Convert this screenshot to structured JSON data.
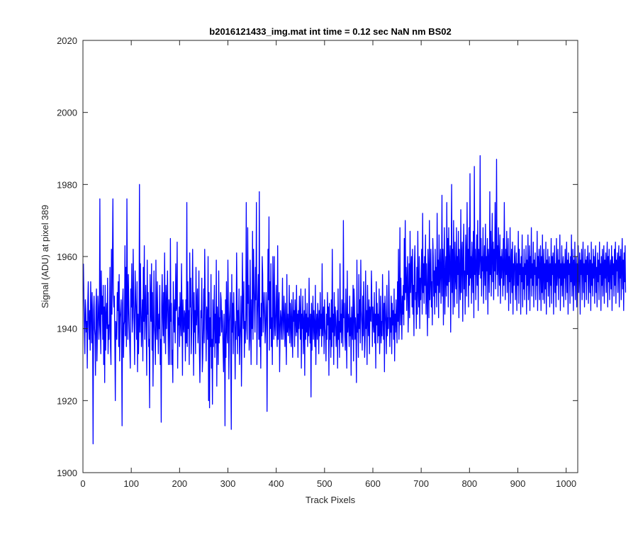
{
  "figure": {
    "title": "b2016121433_img.mat int time = 0.12 sec  NaN nm BS02",
    "xlabel": "Track Pixels",
    "ylabel": "Signal (ADU) at pixel 389"
  },
  "chart_data": {
    "type": "line",
    "title": "b2016121433_img.mat int time = 0.12 sec  NaN nm BS02",
    "xlabel": "Track Pixels",
    "ylabel": "Signal (ADU) at pixel 389",
    "xlim": [
      0,
      1024
    ],
    "ylim": [
      1900,
      2020
    ],
    "xticks": [
      0,
      100,
      200,
      300,
      400,
      500,
      600,
      700,
      800,
      900,
      1000
    ],
    "yticks": [
      1900,
      1920,
      1940,
      1960,
      1980,
      2000,
      2020
    ],
    "grid": false,
    "legend": "none",
    "series": [
      {
        "color": "#0000ff",
        "x_start": 1,
        "x_step": 1,
        "values": [
          1958,
          1948,
          1940,
          1933,
          1948,
          1945,
          1939,
          1942,
          1929,
          1947,
          1953,
          1941,
          1937,
          1945,
          1934,
          1953,
          1945,
          1936,
          1950,
          1939,
          1908,
          1945,
          1949,
          1940,
          1938,
          1927,
          1946,
          1951,
          1931,
          1939,
          1949,
          1946,
          1937,
          1941,
          1976,
          1941,
          1933,
          1956,
          1944,
          1949,
          1937,
          1952,
          1930,
          1946,
          1925,
          1952,
          1934,
          1943,
          1947,
          1940,
          1954,
          1933,
          1941,
          1937,
          1942,
          1957,
          1935,
          1930,
          1962,
          1944,
          1958,
          1976,
          1950,
          1946,
          1949,
          1936,
          1920,
          1942,
          1941,
          1937,
          1950,
          1945,
          1953,
          1935,
          1955,
          1931,
          1943,
          1945,
          1948,
          1937,
          1913,
          1947,
          1951,
          1932,
          1941,
          1942,
          1963,
          1938,
          1957,
          1935,
          1976,
          1949,
          1937,
          1955,
          1946,
          1940,
          1935,
          1929,
          1951,
          1946,
          1958,
          1939,
          1943,
          1962,
          1948,
          1941,
          1930,
          1956,
          1949,
          1944,
          1937,
          1953,
          1928,
          1944,
          1933,
          1941,
          1980,
          1939,
          1958,
          1946,
          1935,
          1942,
          1948,
          1931,
          1957,
          1942,
          1963,
          1937,
          1945,
          1952,
          1940,
          1927,
          1959,
          1944,
          1950,
          1935,
          1937,
          1918,
          1955,
          1946,
          1942,
          1958,
          1934,
          1950,
          1924,
          1939,
          1956,
          1941,
          1938,
          1930,
          1959,
          1943,
          1937,
          1953,
          1941,
          1933,
          1944,
          1940,
          1952,
          1930,
          1937,
          1914,
          1947,
          1955,
          1943,
          1938,
          1950,
          1936,
          1961,
          1945,
          1933,
          1952,
          1940,
          1946,
          1956,
          1942,
          1930,
          1948,
          1944,
          1930,
          1965,
          1942,
          1947,
          1930,
          1934,
          1925,
          1953,
          1944,
          1939,
          1948,
          1936,
          1958,
          1945,
          1946,
          1964,
          1929,
          1943,
          1941,
          1946,
          1935,
          1950,
          1942,
          1938,
          1958,
          1944,
          1927,
          1948,
          1941,
          1939,
          1945,
          1944,
          1931,
          1948,
          1936,
          1975,
          1935,
          1953,
          1940,
          1945,
          1930,
          1961,
          1946,
          1954,
          1933,
          1939,
          1948,
          1962,
          1944,
          1927,
          1950,
          1939,
          1945,
          1933,
          1957,
          1941,
          1946,
          1951,
          1936,
          1940,
          1956,
          1934,
          1925,
          1935,
          1945,
          1943,
          1954,
          1928,
          1932,
          1942,
          1951,
          1936,
          1962,
          1949,
          1942,
          1931,
          1946,
          1944,
          1937,
          1960,
          1920,
          1950,
          1918,
          1943,
          1935,
          1955,
          1929,
          1937,
          1919,
          1948,
          1935,
          1942,
          1952,
          1932,
          1944,
          1936,
          1959,
          1924,
          1946,
          1941,
          1930,
          1956,
          1936,
          1943,
          1938,
          1950,
          1948,
          1939,
          1945,
          1942,
          1934,
          1928,
          1944,
          1937,
          1913,
          1948,
          1932,
          1953,
          1940,
          1936,
          1959,
          1946,
          1926,
          1942,
          1945,
          1950,
          1930,
          1912,
          1955,
          1939,
          1947,
          1933,
          1950,
          1943,
          1940,
          1926,
          1942,
          1937,
          1961,
          1948,
          1933,
          1945,
          1938,
          1951,
          1930,
          1937,
          1942,
          1949,
          1924,
          1938,
          1961,
          1946,
          1940,
          1953,
          1932,
          1942,
          1936,
          1945,
          1975,
          1940,
          1937,
          1968,
          1947,
          1952,
          1934,
          1937,
          1959,
          1943,
          1930,
          1948,
          1940,
          1967,
          1937,
          1962,
          1953,
          1946,
          1939,
          1957,
          1948,
          1975,
          1930,
          1943,
          1949,
          1955,
          1937,
          1978,
          1935,
          1943,
          1929,
          1947,
          1938,
          1960,
          1955,
          1939,
          1945,
          1950,
          1944,
          1936,
          1941,
          1950,
          1946,
          1917,
          1942,
          1962,
          1948,
          1971,
          1934,
          1953,
          1940,
          1958,
          1935,
          1943,
          1930,
          1960,
          1948,
          1937,
          1960,
          1941,
          1938,
          1945,
          1952,
          1940,
          1935,
          1963,
          1937,
          1945,
          1950,
          1928,
          1939,
          1945,
          1943,
          1937,
          1944,
          1954,
          1937,
          1940,
          1949,
          1943,
          1935,
          1947,
          1939,
          1930,
          1955,
          1939,
          1944,
          1938,
          1941,
          1952,
          1936,
          1947,
          1942,
          1935,
          1948,
          1941,
          1932,
          1950,
          1942,
          1945,
          1935,
          1948,
          1943,
          1938,
          1952,
          1939,
          1944,
          1932,
          1945,
          1940,
          1949,
          1943,
          1937,
          1951,
          1929,
          1944,
          1940,
          1949,
          1933,
          1942,
          1945,
          1927,
          1951,
          1937,
          1944,
          1939,
          1947,
          1935,
          1943,
          1938,
          1954,
          1941,
          1936,
          1944,
          1921,
          1947,
          1934,
          1942,
          1949,
          1937,
          1945,
          1940,
          1935,
          1952,
          1930,
          1941,
          1944,
          1937,
          1947,
          1942,
          1933,
          1945,
          1938,
          1950,
          1940,
          1944,
          1935,
          1958,
          1938,
          1942,
          1946,
          1933,
          1948,
          1940,
          1938,
          1931,
          1944,
          1937,
          1950,
          1941,
          1946,
          1927,
          1947,
          1937,
          1943,
          1932,
          1948,
          1935,
          1962,
          1939,
          1944,
          1930,
          1950,
          1938,
          1946,
          1943,
          1935,
          1939,
          1945,
          1929,
          1951,
          1937,
          1942,
          1932,
          1958,
          1939,
          1944,
          1936,
          1948,
          1941,
          1935,
          1970,
          1943,
          1947,
          1938,
          1934,
          1951,
          1940,
          1929,
          1956,
          1939,
          1944,
          1942,
          1935,
          1949,
          1938,
          1943,
          1927,
          1946,
          1940,
          1937,
          1952,
          1931,
          1951,
          1946,
          1937,
          1943,
          1938,
          1925,
          1959,
          1939,
          1944,
          1932,
          1955,
          1940,
          1948,
          1936,
          1959,
          1945,
          1941,
          1934,
          1949,
          1938,
          1953,
          1943,
          1932,
          1937,
          1956,
          1940,
          1945,
          1930,
          1952,
          1943,
          1938,
          1948,
          1933,
          1946,
          1943,
          1942,
          1956,
          1948,
          1935,
          1946,
          1942,
          1939,
          1950,
          1936,
          1944,
          1929,
          1953,
          1941,
          1947,
          1936,
          1944,
          1938,
          1951,
          1933,
          1940,
          1949,
          1936,
          1942,
          1938,
          1955,
          1943,
          1937,
          1947,
          1928,
          1949,
          1945,
          1941,
          1933,
          1952,
          1938,
          1943,
          1940,
          1956,
          1946,
          1935,
          1943,
          1939,
          1949,
          1933,
          1947,
          1941,
          1945,
          1937,
          1951,
          1931,
          1944,
          1939,
          1948,
          1942,
          1936,
          1953,
          1942,
          1962,
          1937,
          1945,
          1968,
          1941,
          1954,
          1946,
          1937,
          1949,
          1944,
          1952,
          1941,
          1965,
          1948,
          1970,
          1950,
          1957,
          1945,
          1953,
          1960,
          1939,
          1948,
          1958,
          1943,
          1967,
          1950,
          1955,
          1960,
          1946,
          1962,
          1944,
          1952,
          1938,
          1958,
          1963,
          1948,
          1950,
          1940,
          1957,
          1944,
          1967,
          1951,
          1946,
          1960,
          1940,
          1954,
          1948,
          1956,
          1962,
          1944,
          1972,
          1950,
          1958,
          1947,
          1960,
          1952,
          1966,
          1944,
          1958,
          1950,
          1938,
          1962,
          1955,
          1943,
          1970,
          1948,
          1954,
          1962,
          1946,
          1953,
          1941,
          1965,
          1960,
          1949,
          1956,
          1944,
          1962,
          1950,
          1957,
          1946,
          1972,
          1952,
          1959,
          1943,
          1966,
          1950,
          1956,
          1962,
          1947,
          1955,
          1977,
          1949,
          1962,
          1941,
          1958,
          1968,
          1944,
          1955,
          1960,
          1949,
          1975,
          1952,
          1965,
          1946,
          1968,
          1953,
          1958,
          1963,
          1939,
          1956,
          1980,
          1950,
          1962,
          1944,
          1970,
          1958,
          1946,
          1964,
          1954,
          1951,
          1968,
          1947,
          1960,
          1955,
          1967,
          1943,
          1962,
          1954,
          1948,
          1973,
          1950,
          1960,
          1964,
          1942,
          1958,
          1969,
          1951,
          1956,
          1944,
          1966,
          1960,
          1949,
          1975,
          1955,
          1962,
          1946,
          1968,
          1952,
          1983,
          1954,
          1960,
          1947,
          1964,
          1957,
          1950,
          1967,
          1943,
          1985,
          1955,
          1962,
          1948,
          1958,
          1966,
          1952,
          1970,
          1945,
          1962,
          1955,
          1959,
          1988,
          1954,
          1965,
          1949,
          1960,
          1956,
          1968,
          1947,
          1958,
          1963,
          1952,
          1969,
          1948,
          1960,
          1956,
          1965,
          1944,
          1962,
          1958,
          1950,
          1978,
          1955,
          1967,
          1949,
          1960,
          1972,
          1953,
          1964,
          1948,
          1962,
          1956,
          1975,
          1951,
          1960,
          1987,
          1955,
          1963,
          1949,
          1968,
          1958,
          1952,
          1966,
          1947,
          1960,
          1954,
          1962,
          1958,
          1949,
          1965,
          1952,
          1975,
          1957,
          1948,
          1962,
          1955,
          1967,
          1950,
          1958,
          1965,
          1945,
          1960,
          1953,
          1968,
          1947,
          1957,
          1962,
          1950,
          1964,
          1944,
          1958,
          1952,
          1960,
          1963,
          1948,
          1956,
          1961,
          1945,
          1958,
          1952,
          1967,
          1947,
          1962,
          1955,
          1958,
          1944,
          1960,
          1953,
          1966,
          1946,
          1957,
          1951,
          1962,
          1948,
          1958,
          1955,
          1963,
          1944,
          1959,
          1952,
          1966,
          1948,
          1956,
          1963,
          1945,
          1960,
          1954,
          1968,
          1949,
          1958,
          1952,
          1964,
          1946,
          1959,
          1955,
          1961,
          1948,
          1957,
          1952,
          1967,
          1945,
          1960,
          1954,
          1962,
          1948,
          1957,
          1963,
          1945,
          1960,
          1950,
          1966,
          1948,
          1956,
          1962,
          1947,
          1958,
          1951,
          1964,
          1944,
          1959,
          1953,
          1962,
          1949,
          1957,
          1960,
          1946,
          1958,
          1952,
          1965,
          1947,
          1960,
          1955,
          1961,
          1944,
          1957,
          1963,
          1950,
          1958,
          1946,
          1965,
          1952,
          1956,
          1962,
          1948,
          1959,
          1954,
          1966,
          1945,
          1958,
          1952,
          1963,
          1949,
          1957,
          1960,
          1946,
          1958,
          1954,
          1962,
          1948,
          1957,
          1964,
          1950,
          1959,
          1944,
          1961,
          1955,
          1958,
          1947,
          1960,
          1953,
          1966,
          1949,
          1956,
          1962,
          1945,
          1959,
          1952,
          1964,
          1948,
          1957,
          1960,
          1946,
          1958,
          1953,
          1963,
          1950,
          1956,
          1961,
          1944,
          1959,
          1955,
          1962,
          1948,
          1957,
          1964,
          1950,
          1958,
          1946,
          1962,
          1953,
          1959,
          1948,
          1960,
          1955,
          1963,
          1947,
          1957,
          1961,
          1950,
          1959,
          1945,
          1964,
          1952,
          1958,
          1949,
          1962,
          1954,
          1960,
          1947,
          1958,
          1963,
          1950,
          1957,
          1946,
          1961,
          1953,
          1959,
          1948,
          1964,
          1955,
          1958,
          1945,
          1960,
          1952,
          1962,
          1949,
          1957,
          1963,
          1947,
          1959,
          1954,
          1961,
          1950,
          1958,
          1964,
          1946,
          1960,
          1953,
          1962,
          1948,
          1957,
          1959,
          1951,
          1963,
          1945,
          1960,
          1955,
          1958,
          1949,
          1962,
          1952,
          1964,
          1947,
          1959,
          1956,
          1961,
          1950,
          1958,
          1963,
          1946,
          1960,
          1954,
          1962,
          1948,
          1957,
          1965,
          1951,
          1959,
          1945,
          1961,
          1953,
          1963,
          1950
        ]
      }
    ]
  }
}
